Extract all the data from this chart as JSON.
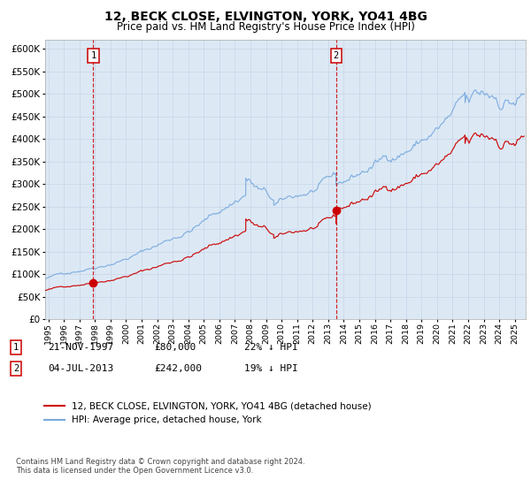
{
  "title": "12, BECK CLOSE, ELVINGTON, YORK, YO41 4BG",
  "subtitle": "Price paid vs. HM Land Registry's House Price Index (HPI)",
  "title_fontsize": 10,
  "subtitle_fontsize": 8.5,
  "bg_color": "#dce9f5",
  "legend_label_red": "12, BECK CLOSE, ELVINGTON, YORK, YO41 4BG (detached house)",
  "legend_label_blue": "HPI: Average price, detached house, York",
  "footnote": "Contains HM Land Registry data © Crown copyright and database right 2024.\nThis data is licensed under the Open Government Licence v3.0.",
  "sale1_date_x": 1997.9,
  "sale1_price": 80000,
  "sale1_label": "21-NOV-1997",
  "sale1_amount": "£80,000",
  "sale1_pct": "22% ↓ HPI",
  "sale2_date_x": 2013.5,
  "sale2_price": 242000,
  "sale2_label": "04-JUL-2013",
  "sale2_amount": "£242,000",
  "sale2_pct": "19% ↓ HPI",
  "ylim": [
    0,
    620000
  ],
  "xlim_start": 1994.8,
  "xlim_end": 2025.7,
  "yticks": [
    0,
    50000,
    100000,
    150000,
    200000,
    250000,
    300000,
    350000,
    400000,
    450000,
    500000,
    550000,
    600000
  ],
  "red_color": "#cc0000",
  "blue_color": "#7aaadd",
  "grid_color": "#c8d4e8"
}
